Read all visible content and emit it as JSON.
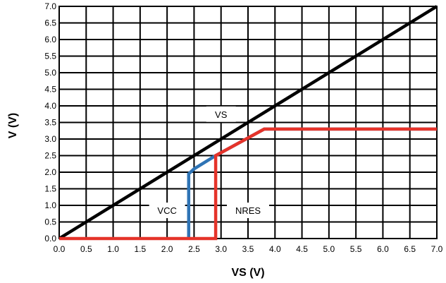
{
  "chart_data": {
    "type": "line",
    "xlabel": "VS (V)",
    "ylabel": "V (V)",
    "xlim": [
      0,
      7
    ],
    "ylim": [
      0,
      7
    ],
    "grid": true,
    "x_ticks": [
      "0.0",
      "0.5",
      "1.0",
      "1.5",
      "2.0",
      "2.5",
      "3.0",
      "3.5",
      "4.0",
      "4.5",
      "5.0",
      "5.5",
      "6.0",
      "6.5",
      "7.0"
    ],
    "y_ticks": [
      "0.0",
      "0.5",
      "1.0",
      "1.5",
      "2.0",
      "2.5",
      "3.0",
      "3.5",
      "4.0",
      "4.5",
      "5.0",
      "5.5",
      "6.0",
      "6.5",
      "7.0"
    ],
    "series": [
      {
        "name": "VS",
        "color": "#000000",
        "points": [
          [
            0,
            0
          ],
          [
            7,
            7
          ]
        ]
      },
      {
        "name": "VCC",
        "color": "#2f74b5",
        "points": [
          [
            2.4,
            0
          ],
          [
            2.4,
            1.95
          ],
          [
            2.5,
            2.1
          ],
          [
            2.9,
            2.5
          ],
          [
            3.8,
            3.3
          ],
          [
            7,
            3.3
          ]
        ]
      },
      {
        "name": "NRES",
        "color": "#e5332a",
        "points": [
          [
            0,
            0
          ],
          [
            2.9,
            0
          ],
          [
            2.9,
            2.5
          ],
          [
            3.8,
            3.3
          ],
          [
            7,
            3.3
          ]
        ]
      }
    ],
    "annotations": [
      {
        "text": "VS",
        "x": 3.0,
        "y": 3.75
      },
      {
        "text": "VCC",
        "x": 2.0,
        "y": 0.85
      },
      {
        "text": "NRES",
        "x": 3.5,
        "y": 0.85
      }
    ]
  }
}
